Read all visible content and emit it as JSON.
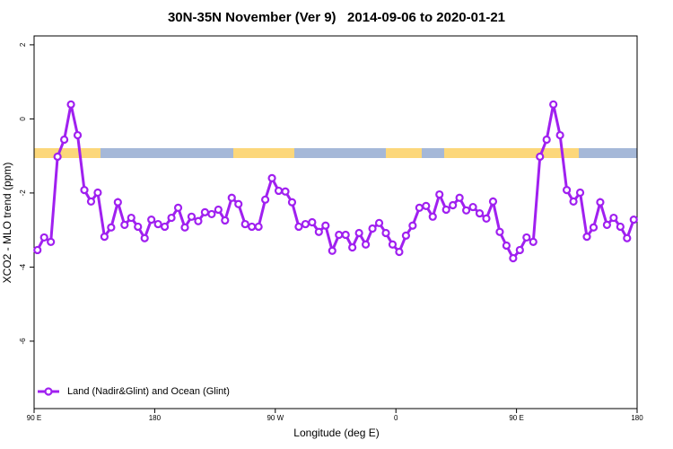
{
  "chart_data": {
    "type": "line",
    "title": "30N-35N November (Ver 9)   2014-09-06 to 2020-01-21",
    "xlabel": "Longitude (deg E)",
    "ylabel": "XCO2 - MLO trend (ppm)",
    "xlim": [
      90,
      540
    ],
    "ylim": [
      -7.82,
      2.24
    ],
    "xticks": [
      {
        "value": 90,
        "label": "90 E"
      },
      180,
      {
        "value": 270,
        "label": "90 W"
      },
      {
        "value": 360,
        "label": "0"
      },
      {
        "value": 450,
        "label": "90 E"
      },
      {
        "value": 540,
        "label": "180"
      }
    ],
    "yticks": [
      2,
      0,
      -2,
      -4,
      -6
    ],
    "legend": "bottom-left",
    "x": [
      92.5,
      97.5,
      102.5,
      107.5,
      112.5,
      117.5,
      122.5,
      127.5,
      132.5,
      137.5,
      142.5,
      147.5,
      152.5,
      157.5,
      162.5,
      167.5,
      172.5,
      177.5,
      182.5,
      187.5,
      192.5,
      197.5,
      202.5,
      207.5,
      212.5,
      217.5,
      222.5,
      227.5,
      232.5,
      237.5,
      242.5,
      247.5,
      252.5,
      257.5,
      262.5,
      267.5,
      272.5,
      277.5,
      282.5,
      287.5,
      292.5,
      297.5,
      302.5,
      307.5,
      312.5,
      317.5,
      322.5,
      327.5,
      332.5,
      337.5,
      342.5,
      347.5,
      352.5,
      357.5,
      362.5,
      367.5,
      372.5,
      377.5,
      382.5,
      387.5,
      392.5,
      397.5,
      402.5,
      407.5,
      412.5,
      417.5,
      422.5,
      427.5,
      432.5,
      437.5,
      442.5,
      447.5,
      452.5,
      457.5,
      462.5,
      467.5,
      472.5,
      477.5,
      482.5,
      487.5,
      492.5,
      497.5,
      502.5,
      507.5,
      512.5,
      517.5,
      522.5,
      527.5,
      532.5,
      537.5
    ],
    "series": [
      {
        "name": "Land (Nadir&Glint) and Ocean (Glint)",
        "color": "#a020f0",
        "values": [
          -3.54,
          -3.2,
          -3.32,
          -1.02,
          -0.56,
          0.39,
          -0.44,
          -1.92,
          -2.23,
          -1.99,
          -3.18,
          -2.93,
          -2.25,
          -2.86,
          -2.67,
          -2.91,
          -3.22,
          -2.72,
          -2.84,
          -2.91,
          -2.67,
          -2.4,
          -2.93,
          -2.64,
          -2.76,
          -2.52,
          -2.57,
          -2.45,
          -2.74,
          -2.13,
          -2.3,
          -2.84,
          -2.91,
          -2.91,
          -2.18,
          -1.6,
          -1.94,
          -1.96,
          -2.25,
          -2.91,
          -2.84,
          -2.79,
          -3.05,
          -2.88,
          -3.56,
          -3.13,
          -3.13,
          -3.47,
          -3.08,
          -3.39,
          -2.96,
          -2.81,
          -3.08,
          -3.39,
          -3.59,
          -3.15,
          -2.88,
          -2.4,
          -2.35,
          -2.64,
          -2.04,
          -2.45,
          -2.33,
          -2.13,
          -2.47,
          -2.38,
          -2.55,
          -2.69,
          -2.23,
          -3.05,
          -3.42,
          -3.76,
          -3.54,
          -3.2,
          -3.32,
          -1.02,
          -0.56,
          0.39,
          -0.44,
          -1.92,
          -2.23,
          -1.99,
          -3.18,
          -2.93,
          -2.25,
          -2.86,
          -2.67,
          -2.91,
          -3.22,
          -2.72
        ]
      }
    ]
  }
}
